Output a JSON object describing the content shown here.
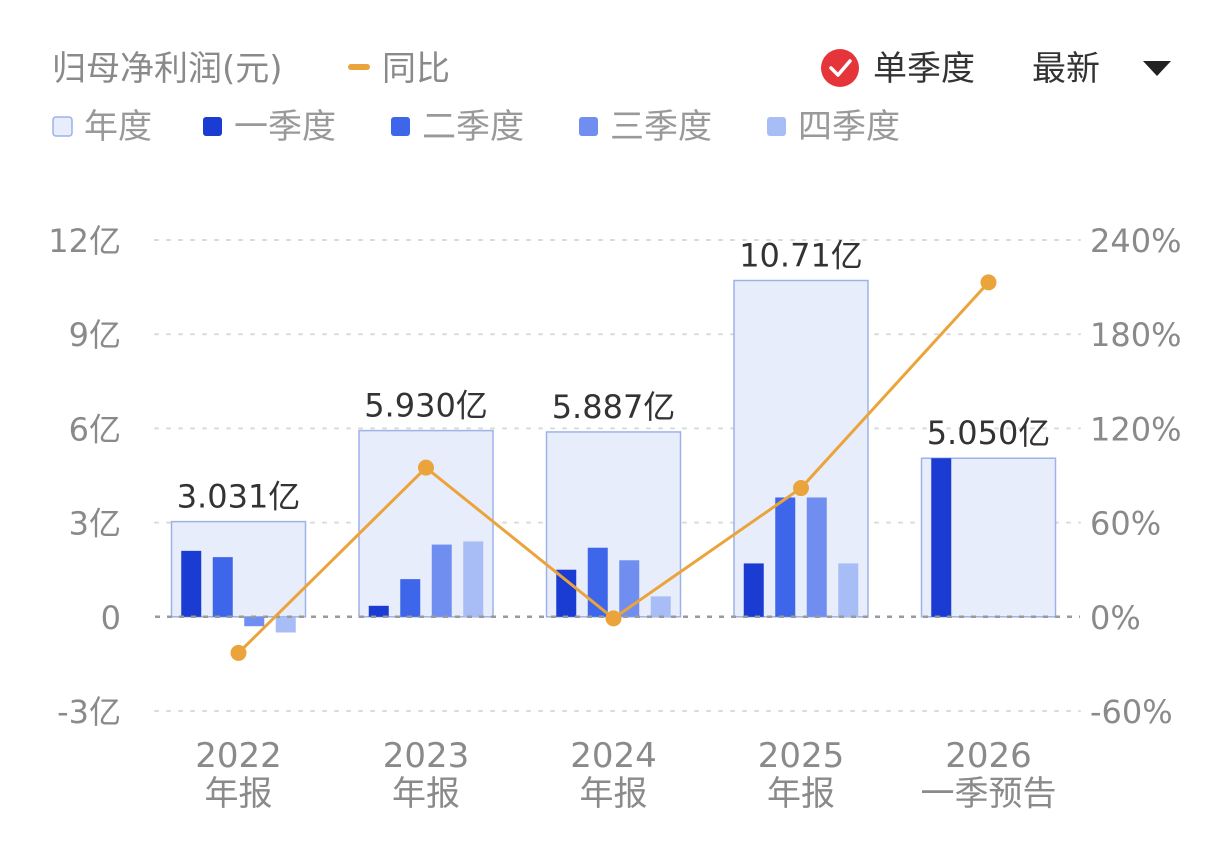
{
  "header": {
    "metric_label": "归母净利润(元)",
    "yoy_label": "同比",
    "single_quarter_label": "单季度",
    "latest_label": "最新"
  },
  "legend": {
    "annual": "年度",
    "q1": "一季度",
    "q2": "二季度",
    "q3": "三季度",
    "q4": "四季度"
  },
  "colors": {
    "annual_fill": "#E8EDFB",
    "annual_stroke": "#9DB2E8",
    "q1": "#1B3CD2",
    "q2": "#3E66EA",
    "q3": "#6F8EF0",
    "q4": "#A8BCF6",
    "yoy_line": "#EBA43C",
    "check_badge": "#E5343A",
    "axis_text": "#8A8A8A",
    "grid": "#DADADA",
    "legend_text": "#999999",
    "header_text": "#333333"
  },
  "chart_data": {
    "type": "bar",
    "categories": [
      {
        "year": "2022",
        "label": "年报"
      },
      {
        "year": "2023",
        "label": "年报"
      },
      {
        "year": "2024",
        "label": "年报"
      },
      {
        "year": "2025",
        "label": "年报"
      },
      {
        "year": "2026",
        "label": "一季预告"
      }
    ],
    "annual": {
      "values": [
        3.031,
        5.93,
        5.887,
        10.71,
        5.05
      ],
      "labels": [
        "3.031亿",
        "5.930亿",
        "5.887亿",
        "10.71亿",
        "5.050亿"
      ]
    },
    "series": [
      {
        "name": "一季度",
        "values": [
          2.1,
          0.35,
          1.5,
          1.7,
          5.05
        ]
      },
      {
        "name": "二季度",
        "values": [
          1.9,
          1.2,
          2.2,
          3.8,
          null
        ]
      },
      {
        "name": "三季度",
        "values": [
          -0.3,
          2.3,
          1.8,
          3.8,
          null
        ]
      },
      {
        "name": "四季度",
        "values": [
          -0.5,
          2.4,
          0.65,
          1.7,
          null
        ]
      }
    ],
    "yoy": {
      "name": "同比",
      "values": [
        -23,
        95,
        -1,
        82,
        213
      ]
    },
    "y_left": {
      "ticks": [
        "12亿",
        "9亿",
        "6亿",
        "3亿",
        "0",
        "-3亿"
      ],
      "values": [
        12,
        9,
        6,
        3,
        0,
        -3
      ],
      "range": [
        -3,
        12
      ]
    },
    "y_right": {
      "ticks": [
        "240%",
        "180%",
        "120%",
        "60%",
        "0%",
        "-60%"
      ],
      "values": [
        240,
        180,
        120,
        60,
        0,
        -60
      ],
      "range": [
        -60,
        240
      ]
    },
    "grid": true
  }
}
